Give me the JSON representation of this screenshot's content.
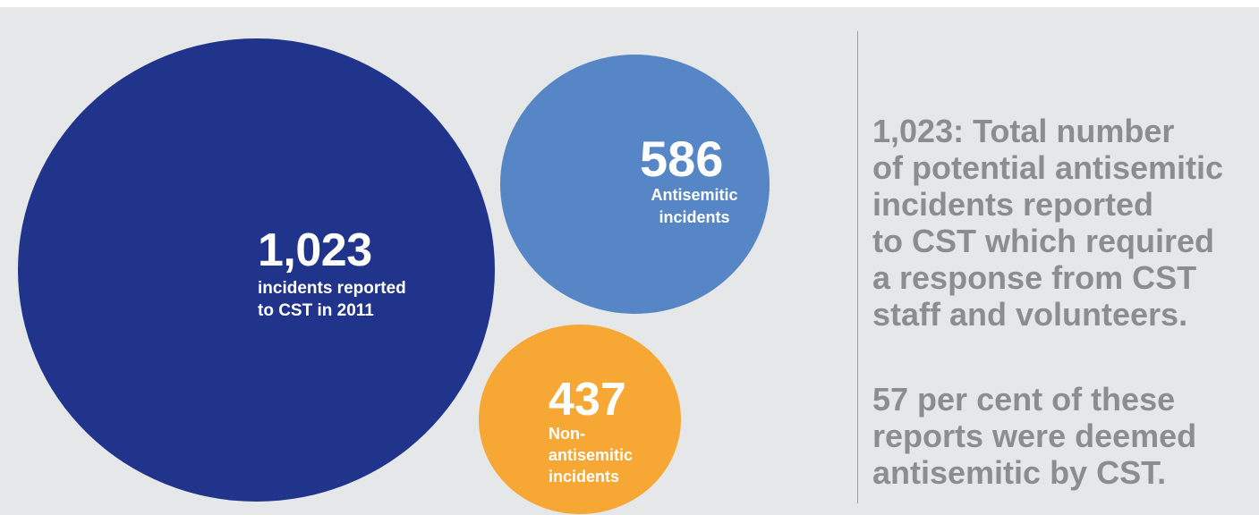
{
  "chart_data": {
    "type": "bubble",
    "bubbles": [
      {
        "value": 1023,
        "value_label": "1,023",
        "lines": [
          "incidents reported",
          "to CST in 2011"
        ],
        "color": "#20348c"
      },
      {
        "value": 586,
        "value_label": "586",
        "lines": [
          "Antisemitic",
          "incidents"
        ],
        "color": "#5686c5"
      },
      {
        "value": 437,
        "value_label": "437",
        "lines": [
          "Non-",
          "antisemitic",
          "incidents"
        ],
        "color": "#f7a733"
      }
    ]
  },
  "info": {
    "paragraph_1": [
      "1,023: Total number",
      "of potential antisemitic",
      "incidents reported",
      "to CST which required",
      "a response from CST",
      "staff and volunteers."
    ],
    "paragraph_2": [
      "57 per cent of these",
      "reports were deemed",
      "antisemitic by CST."
    ]
  },
  "colors": {
    "background": "#e6e7e8",
    "text_gray": "#8c8d8f",
    "divider": "#9a9b9d"
  }
}
